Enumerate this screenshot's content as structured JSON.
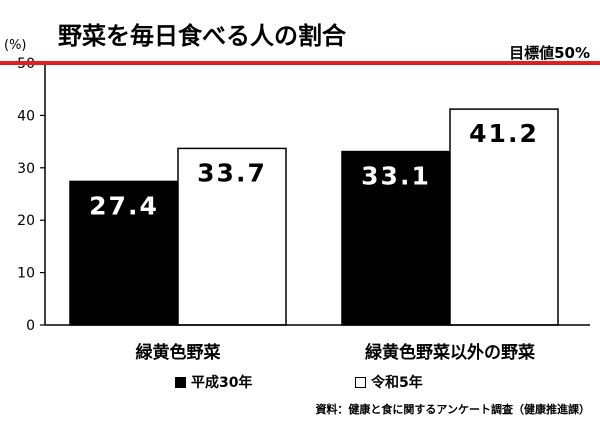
{
  "title": "野菜を毎日食べる人の割合",
  "unit_label": "(%)",
  "target_label": "目標値50%",
  "source_note": "資料：健康と食に関するアンケート調査（健康推進課）",
  "colors": {
    "series_dark": "#000000",
    "series_light": "#ffffff",
    "target_line": "#e02020"
  },
  "chart_data": {
    "type": "bar",
    "categories": [
      "緑黄色野菜",
      "緑黄色野菜以外の野菜"
    ],
    "series": [
      {
        "name": "平成30年",
        "values": [
          27.4,
          33.1
        ]
      },
      {
        "name": "令和5年",
        "values": [
          33.7,
          41.2
        ]
      }
    ],
    "value_labels": [
      [
        "27.4",
        "33.1"
      ],
      [
        "33.7",
        "41.2"
      ]
    ],
    "yticks": [
      "0",
      "10",
      "20",
      "30",
      "40",
      "50"
    ],
    "ylim": [
      0,
      50
    ],
    "target_value": 50,
    "grid": false,
    "legend_position": "bottom"
  }
}
